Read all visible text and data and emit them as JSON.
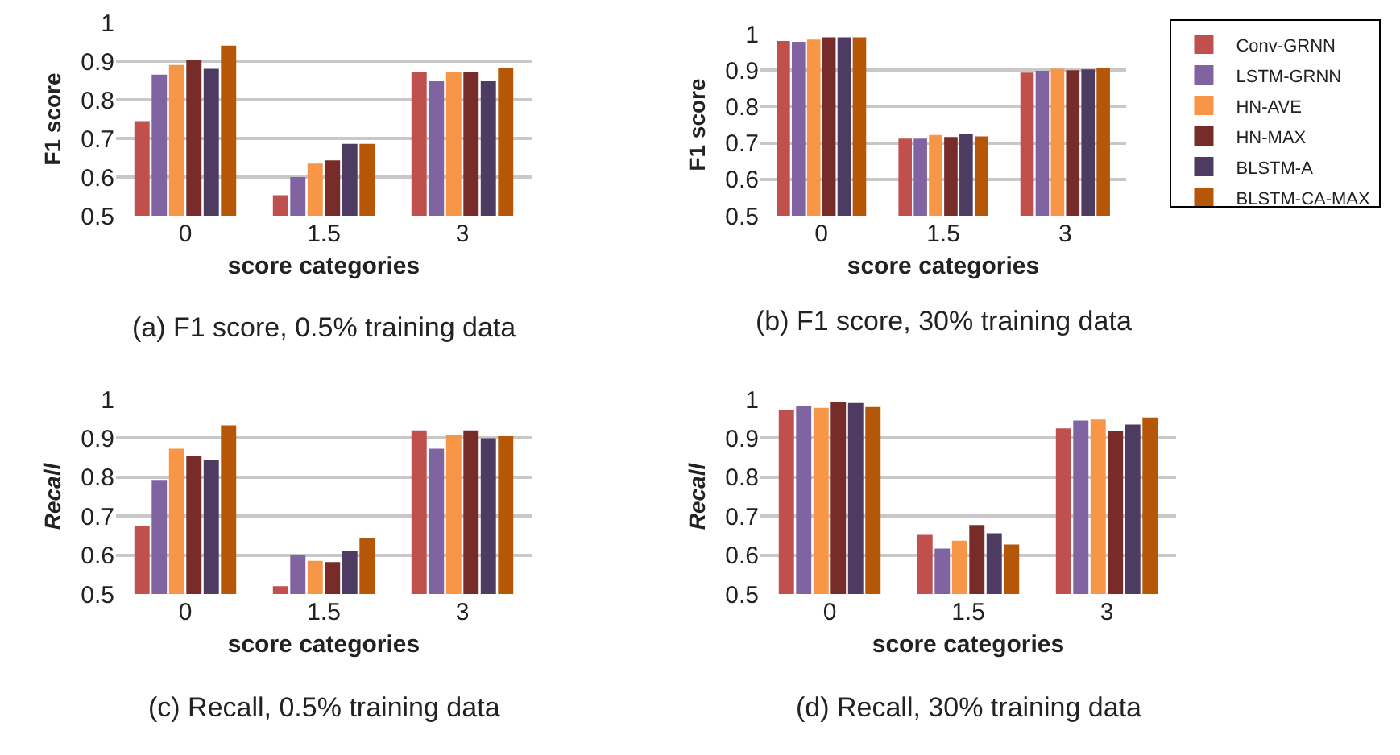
{
  "chart_data": [
    {
      "type": "bar",
      "categories": [
        "0",
        "1.5",
        "3"
      ],
      "xlabel": "score categories",
      "ylabel": "F1 score",
      "ylim": [
        0.5,
        1
      ],
      "yticks": [
        0.5,
        0.6,
        0.7,
        0.8,
        0.9,
        1
      ],
      "grid": "y",
      "legend": false,
      "annotations": [
        "(a) F1 score, 0.5% training data"
      ],
      "series": [
        {
          "color": "#c0504d",
          "values": [
            0.745,
            0.553,
            0.873
          ]
        },
        {
          "color": "#8064a2",
          "values": [
            0.865,
            0.6,
            0.848
          ]
        },
        {
          "color": "#f79646",
          "values": [
            0.89,
            0.635,
            0.873
          ]
        },
        {
          "color": "#772c2a",
          "values": [
            0.903,
            0.643,
            0.873
          ]
        },
        {
          "color": "#4d3b62",
          "values": [
            0.88,
            0.686,
            0.848
          ]
        },
        {
          "color": "#b65708",
          "values": [
            0.94,
            0.686,
            0.882
          ]
        }
      ]
    },
    {
      "type": "bar",
      "categories": [
        "0",
        "1.5",
        "3"
      ],
      "xlabel": "score categories",
      "ylabel": "F1 score",
      "ylim": [
        0.5,
        1
      ],
      "yticks": [
        0.5,
        0.6,
        0.7,
        0.8,
        0.9,
        1
      ],
      "grid": "y",
      "legend": "right",
      "annotations": [
        "(b) F1 score, 30% training data"
      ],
      "series": [
        {
          "name": "Conv-GRNN",
          "color": "#c0504d",
          "values": [
            0.98,
            0.712,
            0.893
          ]
        },
        {
          "name": "LSTM-GRNN",
          "color": "#8064a2",
          "values": [
            0.978,
            0.712,
            0.898
          ]
        },
        {
          "name": "HN-AVE",
          "color": "#f79646",
          "values": [
            0.984,
            0.722,
            0.904
          ]
        },
        {
          "name": "HN-MAX",
          "color": "#772c2a",
          "values": [
            0.99,
            0.716,
            0.9
          ]
        },
        {
          "name": "BLSTM-A",
          "color": "#4d3b62",
          "values": [
            0.99,
            0.724,
            0.902
          ]
        },
        {
          "name": "BLSTM-CA-MAX",
          "color": "#b65708",
          "values": [
            0.99,
            0.718,
            0.906
          ]
        }
      ]
    },
    {
      "type": "bar",
      "categories": [
        "0",
        "1.5",
        "3"
      ],
      "xlabel": "score categories",
      "ylabel": "Recall",
      "ylim": [
        0.5,
        1
      ],
      "yticks": [
        0.5,
        0.6,
        0.7,
        0.8,
        0.9,
        1
      ],
      "grid": "y",
      "legend": false,
      "annotations": [
        "(c) Recall, 0.5% training data"
      ],
      "series": [
        {
          "color": "#c0504d",
          "values": [
            0.675,
            0.52,
            0.92
          ]
        },
        {
          "color": "#8064a2",
          "values": [
            0.793,
            0.6,
            0.873
          ]
        },
        {
          "color": "#f79646",
          "values": [
            0.873,
            0.585,
            0.908
          ]
        },
        {
          "color": "#772c2a",
          "values": [
            0.855,
            0.582,
            0.92
          ]
        },
        {
          "color": "#4d3b62",
          "values": [
            0.843,
            0.61,
            0.9
          ]
        },
        {
          "color": "#b65708",
          "values": [
            0.933,
            0.643,
            0.905
          ]
        }
      ]
    },
    {
      "type": "bar",
      "categories": [
        "0",
        "1.5",
        "3"
      ],
      "xlabel": "score categories",
      "ylabel": "Recall",
      "ylim": [
        0.5,
        1
      ],
      "yticks": [
        0.5,
        0.6,
        0.7,
        0.8,
        0.9,
        1
      ],
      "grid": "y",
      "legend": false,
      "annotations": [
        "(d) Recall, 30% training data"
      ],
      "series": [
        {
          "color": "#c0504d",
          "values": [
            0.973,
            0.652,
            0.925
          ]
        },
        {
          "color": "#8064a2",
          "values": [
            0.982,
            0.617,
            0.945
          ]
        },
        {
          "color": "#f79646",
          "values": [
            0.978,
            0.637,
            0.948
          ]
        },
        {
          "color": "#772c2a",
          "values": [
            0.993,
            0.677,
            0.918
          ]
        },
        {
          "color": "#4d3b62",
          "values": [
            0.99,
            0.656,
            0.935
          ]
        },
        {
          "color": "#b65708",
          "values": [
            0.98,
            0.627,
            0.953
          ]
        }
      ]
    }
  ]
}
